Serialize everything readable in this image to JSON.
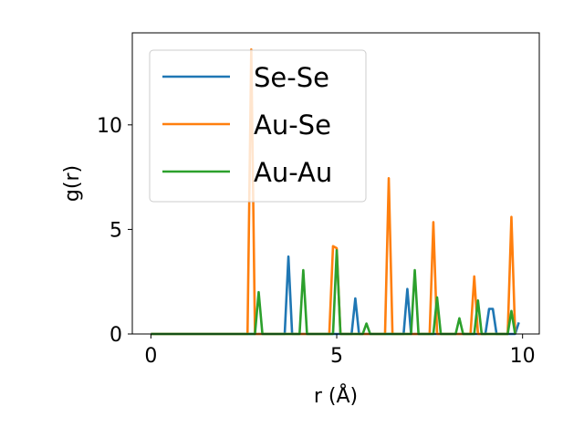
{
  "chart_data": {
    "type": "line",
    "title": "",
    "xlabel": "r (Å)",
    "ylabel": "g(r)",
    "xlim": [
      -0.5,
      10.45
    ],
    "ylim": [
      0,
      14.4
    ],
    "xticks": [
      0,
      5,
      10
    ],
    "yticks": [
      0,
      5,
      10
    ],
    "x_tick_labels": [
      "0",
      "5",
      "10"
    ],
    "y_tick_labels": [
      "0",
      "5",
      "10"
    ],
    "grid": false,
    "legend_placement": "upper-left",
    "series": [
      {
        "name": "Se-Se",
        "color": "#1f77b4",
        "points": [
          [
            0,
            0
          ],
          [
            3.6,
            0
          ],
          [
            3.7,
            3.7
          ],
          [
            3.8,
            0
          ],
          [
            5.4,
            0
          ],
          [
            5.5,
            1.7
          ],
          [
            5.6,
            0
          ],
          [
            6.8,
            0
          ],
          [
            6.9,
            2.15
          ],
          [
            7.0,
            0
          ],
          [
            9.0,
            0
          ],
          [
            9.1,
            1.2
          ],
          [
            9.2,
            1.2
          ],
          [
            9.3,
            0
          ],
          [
            9.8,
            0
          ],
          [
            9.9,
            0.55
          ]
        ]
      },
      {
        "name": "Au-Se",
        "color": "#ff7f0e",
        "points": [
          [
            0,
            0
          ],
          [
            2.6,
            0
          ],
          [
            2.7,
            13.6
          ],
          [
            2.8,
            0
          ],
          [
            4.8,
            0
          ],
          [
            4.9,
            4.2
          ],
          [
            5.0,
            4.1
          ],
          [
            5.1,
            0
          ],
          [
            6.3,
            0
          ],
          [
            6.4,
            7.45
          ],
          [
            6.5,
            0
          ],
          [
            7.5,
            0
          ],
          [
            7.6,
            5.35
          ],
          [
            7.7,
            0
          ],
          [
            8.6,
            0
          ],
          [
            8.7,
            2.75
          ],
          [
            8.8,
            0
          ],
          [
            9.6,
            0
          ],
          [
            9.7,
            5.6
          ],
          [
            9.8,
            0
          ]
        ]
      },
      {
        "name": "Au-Au",
        "color": "#2ca02c",
        "points": [
          [
            0,
            0
          ],
          [
            2.8,
            0
          ],
          [
            2.9,
            2.0
          ],
          [
            3.0,
            0
          ],
          [
            4.0,
            0
          ],
          [
            4.1,
            3.05
          ],
          [
            4.2,
            0
          ],
          [
            4.9,
            0
          ],
          [
            5.0,
            4.0
          ],
          [
            5.1,
            0
          ],
          [
            5.7,
            0
          ],
          [
            5.8,
            0.5
          ],
          [
            5.9,
            0
          ],
          [
            7.0,
            0
          ],
          [
            7.1,
            3.05
          ],
          [
            7.2,
            0
          ],
          [
            7.6,
            0
          ],
          [
            7.7,
            1.75
          ],
          [
            7.8,
            0
          ],
          [
            8.2,
            0
          ],
          [
            8.3,
            0.75
          ],
          [
            8.4,
            0
          ],
          [
            8.7,
            0
          ],
          [
            8.8,
            1.6
          ],
          [
            8.9,
            0
          ],
          [
            9.6,
            0
          ],
          [
            9.7,
            1.1
          ],
          [
            9.8,
            0
          ]
        ]
      }
    ]
  }
}
